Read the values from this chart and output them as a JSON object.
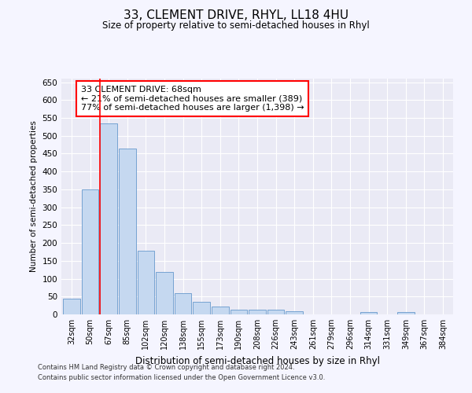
{
  "title1": "33, CLEMENT DRIVE, RHYL, LL18 4HU",
  "title2": "Size of property relative to semi-detached houses in Rhyl",
  "xlabel": "Distribution of semi-detached houses by size in Rhyl",
  "ylabel": "Number of semi-detached properties",
  "categories": [
    "32sqm",
    "50sqm",
    "67sqm",
    "85sqm",
    "102sqm",
    "120sqm",
    "138sqm",
    "155sqm",
    "173sqm",
    "190sqm",
    "208sqm",
    "226sqm",
    "243sqm",
    "261sqm",
    "279sqm",
    "296sqm",
    "314sqm",
    "331sqm",
    "349sqm",
    "367sqm",
    "384sqm"
  ],
  "values": [
    45,
    350,
    535,
    465,
    178,
    118,
    60,
    35,
    22,
    14,
    14,
    14,
    8,
    0,
    0,
    0,
    7,
    0,
    7,
    0,
    0
  ],
  "bar_color": "#c5d8f0",
  "bar_edge_color": "#6699cc",
  "red_line_index": 2,
  "annotation_line1": "33 CLEMENT DRIVE: 68sqm",
  "annotation_line2": "← 21% of semi-detached houses are smaller (389)",
  "annotation_line3": "77% of semi-detached houses are larger (1,398) →",
  "ylim": [
    0,
    660
  ],
  "yticks": [
    0,
    50,
    100,
    150,
    200,
    250,
    300,
    350,
    400,
    450,
    500,
    550,
    600,
    650
  ],
  "background_color": "#f5f5ff",
  "plot_bg_color": "#eaeaf5",
  "footer1": "Contains HM Land Registry data © Crown copyright and database right 2024.",
  "footer2": "Contains public sector information licensed under the Open Government Licence v3.0."
}
